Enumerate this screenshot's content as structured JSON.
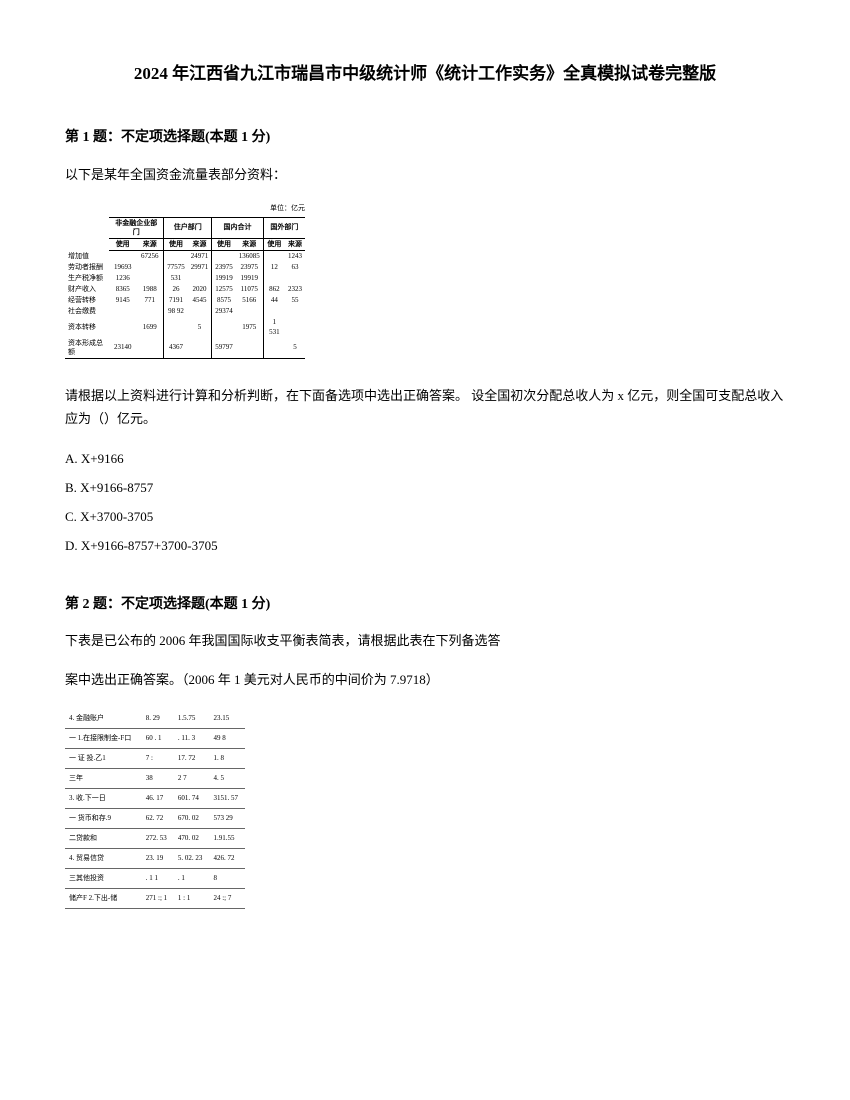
{
  "title": "2024 年江西省九江市瑞昌市中级统计师《统计工作实务》全真模拟试卷完整版",
  "q1": {
    "header": "第 1 题：不定项选择题(本题 1 分)",
    "intro": "以下是某年全国资金流量表部分资料：",
    "unit": "单位：亿元",
    "table_headers": {
      "col_group_1": "非金融企业部门",
      "col_group_2": "住户部门",
      "col_group_3": "国内合计",
      "col_group_4": "国外部门",
      "sub1": "使用",
      "sub2": "来源",
      "sub3": "使用",
      "sub4": "来源",
      "sub5": "使用",
      "sub6": "来源",
      "sub7": "使用",
      "sub8": "来源"
    },
    "table_rows": [
      {
        "label": "增加值",
        "c1": "",
        "c2": "67256",
        "c3": "",
        "c4": "24971",
        "c5": "",
        "c6": "136085",
        "c7": "",
        "c8": "1243"
      },
      {
        "label": "劳动者报酬",
        "c1": "19693",
        "c2": "",
        "c3": "77575",
        "c4": "29971",
        "c5": "23975",
        "c6": "23975",
        "c7": "12",
        "c8": "63"
      },
      {
        "label": "生产税净额",
        "c1": "1236",
        "c2": "",
        "c3": "531",
        "c4": "",
        "c5": "19919",
        "c6": "19919",
        "c7": "",
        "c8": ""
      },
      {
        "label": "财产收入",
        "c1": "8365",
        "c2": "1988",
        "c3": "26",
        "c4": "2020",
        "c5": "12575",
        "c6": "11075",
        "c7": "862",
        "c8": "2323"
      },
      {
        "label": "经营转移",
        "c1": "9145",
        "c2": "771",
        "c3": "7191",
        "c4": "4545",
        "c5": "8575",
        "c6": "5166",
        "c7": "44",
        "c8": "55"
      },
      {
        "label": "社会缴费",
        "c1": "",
        "c2": "",
        "c3": "98 92",
        "c4": "",
        "c5": "29374",
        "c6": "",
        "c7": "",
        "c8": ""
      },
      {
        "label": "资本转移",
        "c1": "",
        "c2": "1699",
        "c3": "",
        "c4": "5",
        "c5": "",
        "c6": "1975",
        "c7": "1 531",
        "c8": ""
      },
      {
        "label": "资本形成总额",
        "c1": "23140",
        "c2": "",
        "c3": "4367",
        "c4": "",
        "c5": "59797",
        "c6": "",
        "c7": "",
        "c8": "5"
      }
    ],
    "instruction": "请根据以上资料进行计算和分析判断，在下面备选项中选出正确答案。  设全国初次分配总收人为 x 亿元，则全国可支配总收入应为（）亿元。",
    "options": {
      "a": "A. X+9166",
      "b": "B. X+9166-8757",
      "c": "C. X+3700-3705",
      "d": "D. X+9166-8757+3700-3705"
    }
  },
  "q2": {
    "header": "第 2 题：不定项选择题(本题 1 分)",
    "intro1": "下表是已公布的 2006 年我国国际收支平衡表简表，请根据此表在下列备选答",
    "intro2": "案中选出正确答案。（2006 年 1 美元对人民币的中间价为 7.9718）",
    "table_rows": [
      {
        "label": "4. 金融账户",
        "c1": "8. 29",
        "c2": "1.5.75",
        "c3": "23.15"
      },
      {
        "label": "一 1.在接限制金-F口",
        "c1": "60 . 1",
        "c2": ". 11. 3",
        "c3": "49  8"
      },
      {
        "label": "一 证  投.乙1",
        "c1": "7 :",
        "c2": "17. 72",
        "c3": "1. 8"
      },
      {
        "label": "三年",
        "c1": "  38",
        "c2": "2 7",
        "c3": "4. 5"
      },
      {
        "label": "3. 收.下一日",
        "c1": "46. 17",
        "c2": "601. 74",
        "c3": "3151. 57"
      },
      {
        "label": "一 货币和存.9",
        "c1": "62. 72",
        "c2": "670. 02",
        "c3": "573 29"
      },
      {
        "label": "二贷款和",
        "c1": "272. 53",
        "c2": "470. 02",
        "c3": "1.91.55"
      },
      {
        "label": "4. 贸易信贷",
        "c1": "23. 19",
        "c2": "5. 02. 23",
        "c3": "426. 72"
      },
      {
        "label": "三其他投资",
        "c1": ". 1   1",
        "c2": ". 1",
        "c3": "8"
      },
      {
        "label": "储产F 2.下出-储",
        "c1": "271 :; 1",
        "c2": "1 : 1",
        "c3": "24 :; 7"
      }
    ]
  }
}
